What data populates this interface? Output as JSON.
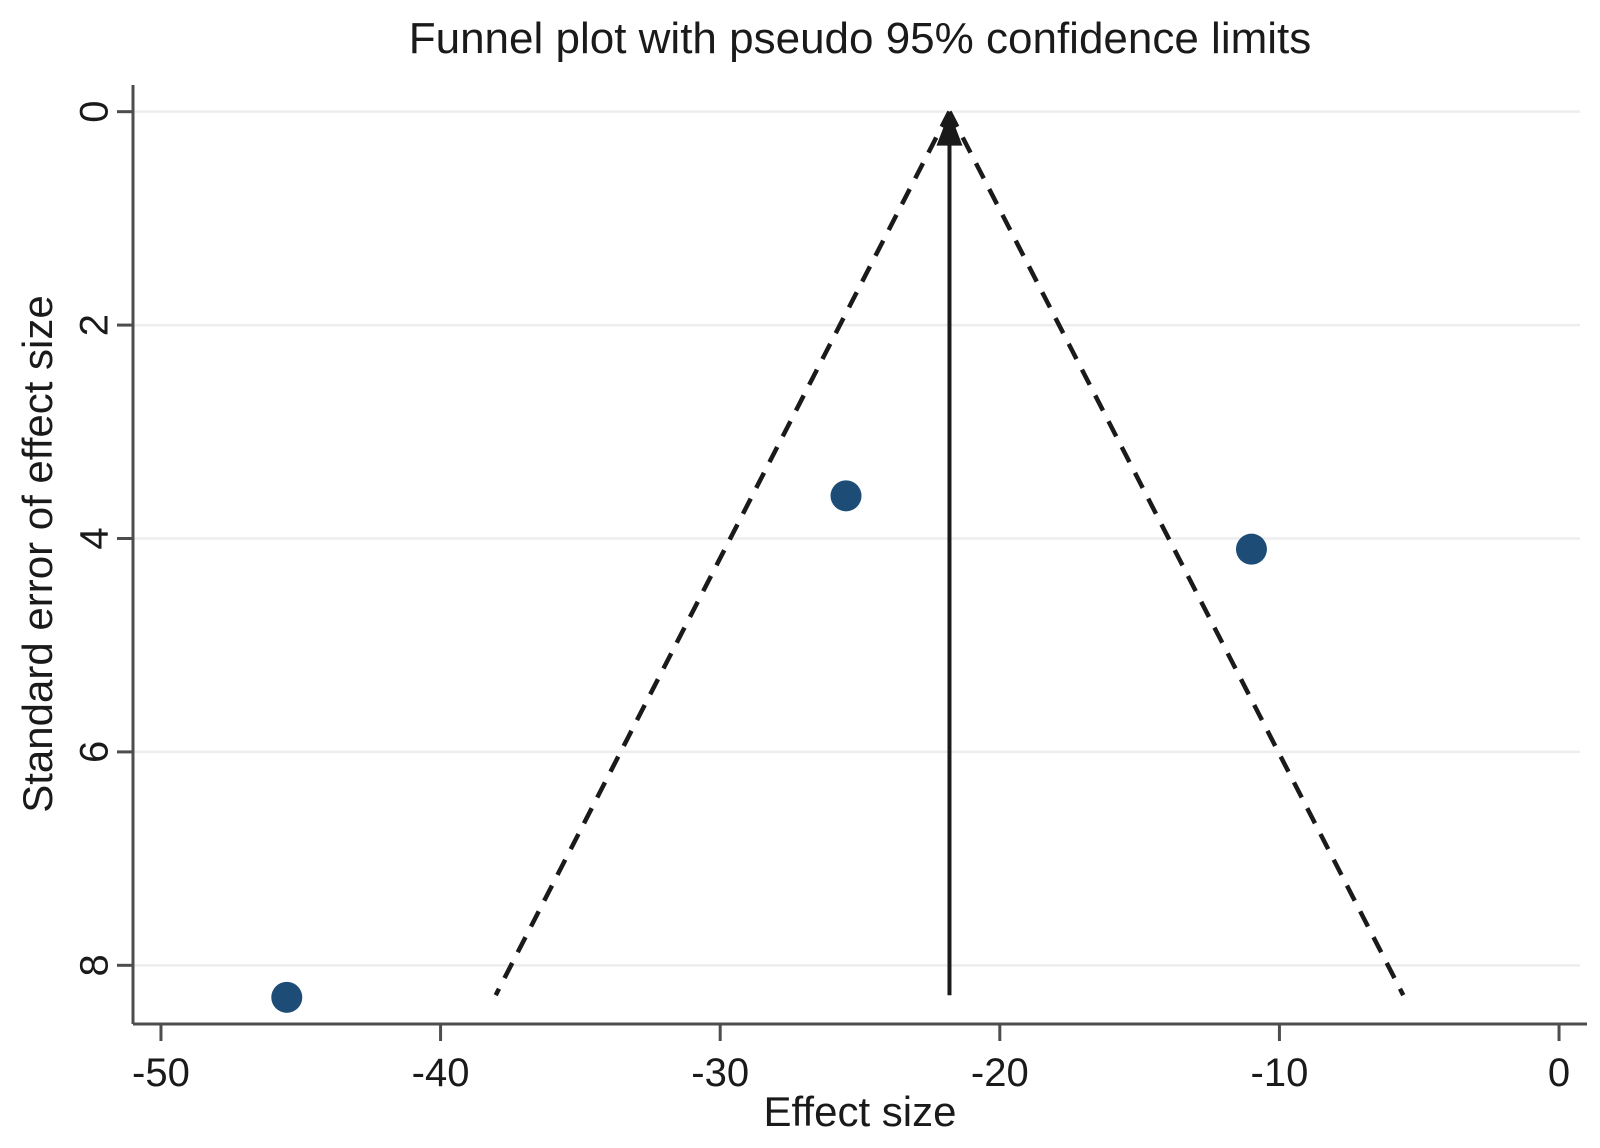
{
  "figure": {
    "background": "#ffffff"
  },
  "chart_data": {
    "type": "scatter",
    "subtype": "funnel-plot",
    "title": "Funnel plot with pseudo 95% confidence limits",
    "xlabel": "Effect size",
    "ylabel": "Standard error of effect size",
    "x_ticks": [
      -50,
      -40,
      -30,
      -20,
      -10,
      0
    ],
    "y_ticks": [
      0,
      2,
      4,
      6,
      8
    ],
    "xlim": [
      -51,
      1
    ],
    "ylim": [
      -0.25,
      8.55
    ],
    "y_inverted": true,
    "grid": "horizontal-only",
    "legend": "none",
    "points": [
      {
        "effect": -45.5,
        "se": 8.3
      },
      {
        "effect": -25.5,
        "se": 3.6
      },
      {
        "effect": -11.0,
        "se": 4.1
      }
    ],
    "pooled_effect": -21.8,
    "ci_z": 1.96,
    "funnel_se_min": 0,
    "funnel_se_max": 8.28,
    "colors": {
      "point": "#1d4c77",
      "funnel_line": "#1a1a1a",
      "pooled_line": "#1a1a1a",
      "axis": "#4d4d4d",
      "grid": "#ededed",
      "text": "#1a1a1a"
    }
  }
}
